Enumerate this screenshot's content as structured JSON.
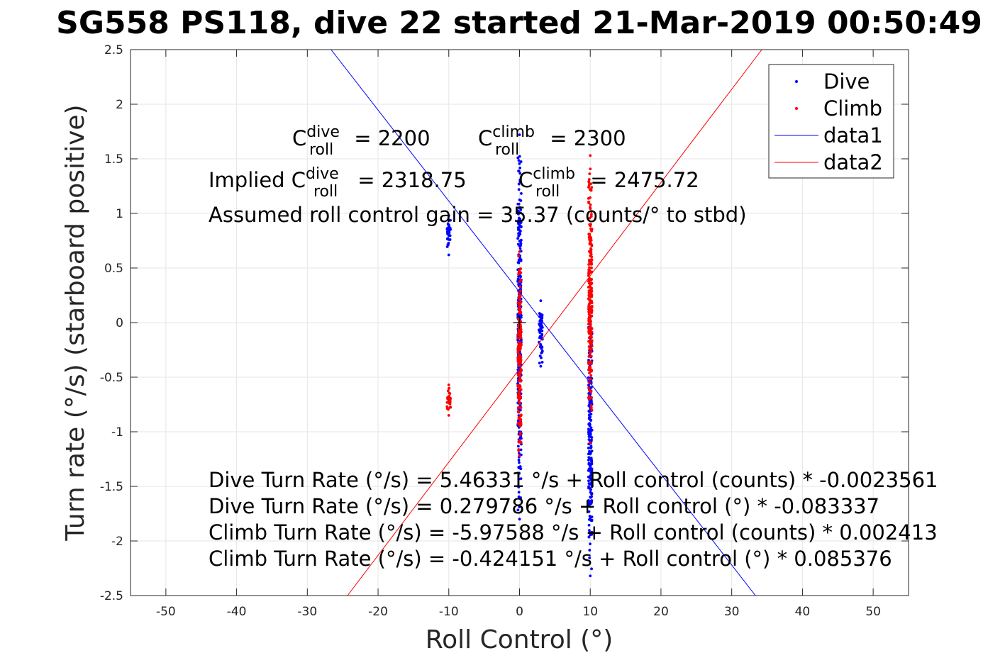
{
  "chart_data": {
    "type": "scatter",
    "title": "SG558 PS118, dive 22 started 21-Mar-2019 00:50:49",
    "xlabel": "Roll Control (°)",
    "ylabel": "Turn rate (°/s) (starboard positive)",
    "xlim": [
      -55,
      55
    ],
    "ylim": [
      -2.5,
      2.5
    ],
    "x_ticks": [
      "-50",
      "-40",
      "-30",
      "-20",
      "-10",
      "0",
      "10",
      "20",
      "30",
      "40",
      "50"
    ],
    "y_ticks": [
      "-2.5",
      "-2",
      "-1.5",
      "-1",
      "-0.5",
      "0",
      "0.5",
      "1",
      "1.5",
      "2",
      "2.5"
    ],
    "grid": true,
    "legend_position": "top-right",
    "series": [
      {
        "name": "Dive",
        "kind": "points",
        "color": "#0000ff",
        "clusters": [
          {
            "x": 0,
            "y_min": -1.8,
            "y_max": 1.72
          },
          {
            "x": 10,
            "y_min": -2.32,
            "y_max": 0.2
          },
          {
            "x": 3,
            "y_min": -0.4,
            "y_max": 0.2
          },
          {
            "x": -10,
            "y_min": 0.62,
            "y_max": 0.98
          }
        ]
      },
      {
        "name": "Climb",
        "kind": "points",
        "color": "#ff0000",
        "clusters": [
          {
            "x": 0,
            "y_min": -1.22,
            "y_max": 0.65
          },
          {
            "x": 10,
            "y_min": -1.1,
            "y_max": 1.53
          },
          {
            "x": -10,
            "y_min": -0.85,
            "y_max": -0.57
          }
        ]
      },
      {
        "name": "data1",
        "kind": "line",
        "color": "#0000ff",
        "intercept": 0.279786,
        "slope": -0.083337
      },
      {
        "name": "data2",
        "kind": "line",
        "color": "#ff0000",
        "intercept": -0.424151,
        "slope": 0.085376
      }
    ],
    "marker": {
      "x": 0,
      "y": 0,
      "symbol": "+"
    },
    "annotations": {
      "c_roll_dive": {
        "base": "C",
        "sup": "dive",
        "sub": "roll",
        "value": " = 2200"
      },
      "c_roll_climb": {
        "base": "C",
        "sup": "climb",
        "sub": "roll",
        "value": " = 2300"
      },
      "implied_prefix": "Implied ",
      "implied_dive": {
        "base": "C",
        "sup": "dive",
        "sub": "roll",
        "value": " = 2318.75"
      },
      "implied_climb": {
        "base": "C",
        "sup": "climb",
        "sub": "roll",
        "value": " = 2475.72"
      },
      "gain": "Assumed roll control gain = 35.37 (counts/° to stbd)",
      "equations": [
        "Dive Turn Rate (°/s) = 5.46331 °/s + Roll control (counts) * -0.0023561",
        "Dive Turn Rate (°/s) = 0.279786 °/s + Roll control (°) * -0.083337",
        "Climb Turn Rate (°/s) = -5.97588 °/s + Roll control (counts) * 0.002413",
        "Climb Turn Rate (°/s) = -0.424151 °/s + Roll control (°) * 0.085376"
      ]
    }
  }
}
